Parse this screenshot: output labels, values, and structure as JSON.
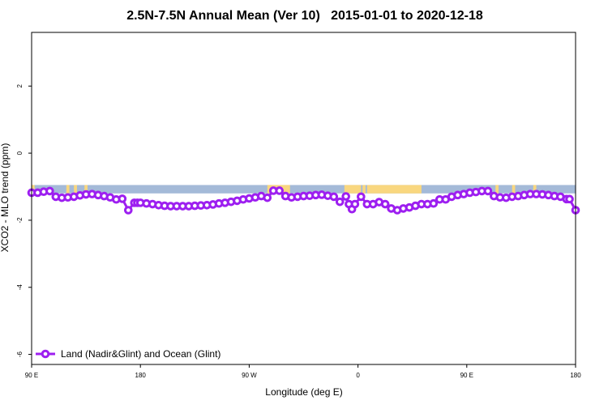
{
  "chart_data": {
    "type": "line",
    "title": "2.5N-7.5N Annual Mean (Ver 10)   2015-01-01 to 2020-12-18",
    "xlabel": "Longitude (deg E)",
    "ylabel": "XCO2 - MLO trend (ppm)",
    "xlim": [
      -90,
      270
    ],
    "ylim": [
      -6.3,
      3.6
    ],
    "x_ticks": [
      {
        "value": -90,
        "label": "90 E"
      },
      {
        "value": -18,
        "label": "180"
      },
      {
        "value": 54,
        "label": "90 W"
      },
      {
        "value": 126,
        "label": "0"
      },
      {
        "value": 198,
        "label": "90 E"
      },
      {
        "value": 270,
        "label": "180"
      }
    ],
    "y_ticks": [
      {
        "value": 2,
        "label": "2"
      },
      {
        "value": 0,
        "label": "0"
      },
      {
        "value": -2,
        "label": "-2"
      },
      {
        "value": -4,
        "label": "-4"
      },
      {
        "value": -6,
        "label": "-6"
      }
    ],
    "land_ocean_band": {
      "y_top": -0.95,
      "y_bottom": -1.2,
      "ocean_color": "#a4bad8",
      "land_color": "#f9d77f",
      "land_segments": [
        [
          -90,
          -88
        ],
        [
          -67,
          -65
        ],
        [
          -62,
          -60
        ],
        [
          -55,
          -53
        ],
        [
          66,
          68
        ],
        [
          68,
          81
        ],
        [
          117,
          127
        ],
        [
          127,
          128
        ],
        [
          129,
          131
        ],
        [
          132,
          168
        ],
        [
          217,
          219
        ],
        [
          228,
          230
        ],
        [
          242,
          244
        ]
      ]
    },
    "series": [
      {
        "name": "Land (Nadir&Glint) and Ocean (Glint)",
        "color": "#9d1ff0",
        "x": [
          -90,
          -86,
          -82,
          -78,
          -74,
          -70,
          -66,
          -62,
          -58,
          -54,
          -50,
          -46,
          -42,
          -38,
          -34,
          -30,
          -26,
          -22,
          -20,
          -18,
          -14,
          -10,
          -6,
          -2,
          2,
          6,
          10,
          14,
          18,
          22,
          26,
          30,
          34,
          38,
          42,
          46,
          50,
          54,
          58,
          62,
          66,
          70,
          74,
          78,
          82,
          86,
          90,
          94,
          98,
          102,
          106,
          110,
          114,
          118,
          120,
          122,
          124,
          128,
          132,
          136,
          140,
          144,
          148,
          152,
          156,
          160,
          164,
          168,
          172,
          176,
          180,
          184,
          188,
          192,
          196,
          200,
          204,
          208,
          212,
          216,
          220,
          224,
          228,
          232,
          236,
          240,
          244,
          248,
          252,
          256,
          260,
          264,
          266,
          270
        ],
        "y": [
          -1.18,
          -1.18,
          -1.15,
          -1.13,
          -1.3,
          -1.33,
          -1.32,
          -1.3,
          -1.26,
          -1.23,
          -1.22,
          -1.25,
          -1.28,
          -1.32,
          -1.38,
          -1.36,
          -1.7,
          -1.48,
          -1.48,
          -1.48,
          -1.5,
          -1.52,
          -1.55,
          -1.57,
          -1.58,
          -1.58,
          -1.58,
          -1.58,
          -1.57,
          -1.56,
          -1.55,
          -1.53,
          -1.5,
          -1.48,
          -1.45,
          -1.42,
          -1.38,
          -1.35,
          -1.32,
          -1.28,
          -1.33,
          -1.12,
          -1.12,
          -1.28,
          -1.32,
          -1.3,
          -1.28,
          -1.27,
          -1.25,
          -1.24,
          -1.27,
          -1.3,
          -1.45,
          -1.29,
          -1.52,
          -1.67,
          -1.52,
          -1.3,
          -1.52,
          -1.52,
          -1.46,
          -1.52,
          -1.65,
          -1.7,
          -1.65,
          -1.62,
          -1.57,
          -1.52,
          -1.52,
          -1.5,
          -1.38,
          -1.38,
          -1.3,
          -1.25,
          -1.22,
          -1.18,
          -1.16,
          -1.13,
          -1.13,
          -1.28,
          -1.32,
          -1.33,
          -1.3,
          -1.28,
          -1.25,
          -1.22,
          -1.22,
          -1.23,
          -1.25,
          -1.28,
          -1.3,
          -1.37,
          -1.37,
          -1.7
        ]
      }
    ],
    "legend": {
      "position": "bottom-left",
      "label": "Land (Nadir&Glint) and Ocean (Glint)"
    }
  }
}
